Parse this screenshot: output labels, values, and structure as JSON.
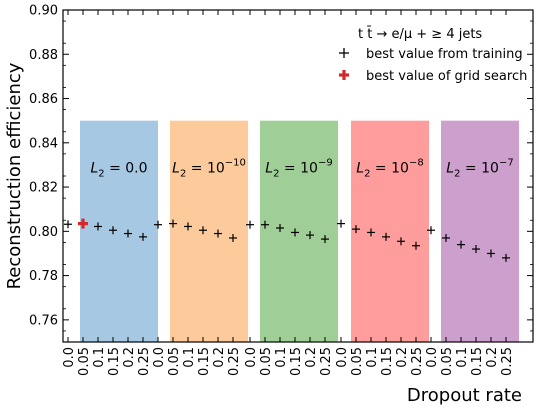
{
  "chart_data": {
    "type": "scatter",
    "title": "",
    "xlabel": "Dropout rate",
    "ylabel": "Reconstruction efficiency",
    "ylim": [
      0.75,
      0.9
    ],
    "yticks": [
      "0.76",
      "0.78",
      "0.80",
      "0.82",
      "0.84",
      "0.86",
      "0.88",
      "0.90"
    ],
    "dropout_ticks": [
      "0.0",
      "0.05",
      "0.1",
      "0.15",
      "0.2",
      "0.25"
    ],
    "annotation_process": "t t̄ → e/μ + ≥ 4 jets",
    "legend": {
      "position": "top-right",
      "entries": [
        {
          "label": "best value from training",
          "marker": "+",
          "color": "#000000"
        },
        {
          "label": "best value of grid search",
          "marker": "plus-thick",
          "color": "#d62728"
        }
      ]
    },
    "groups": [
      {
        "l2_label_prefix": "L",
        "l2_sub": "2",
        "l2_eq": " = ",
        "l2_base": "0.0",
        "l2_exp": "",
        "color": "#a6c8e3",
        "values": [
          0.8032,
          0.8035,
          0.8022,
          0.8005,
          0.799,
          0.7975
        ]
      },
      {
        "l2_label_prefix": "L",
        "l2_sub": "2",
        "l2_eq": " = ",
        "l2_base": "10",
        "l2_exp": "−10",
        "color": "#fdcb9b",
        "values": [
          0.803,
          0.8035,
          0.8022,
          0.8005,
          0.799,
          0.797
        ]
      },
      {
        "l2_label_prefix": "L",
        "l2_sub": "2",
        "l2_eq": " = ",
        "l2_base": "10",
        "l2_exp": "−9",
        "color": "#9fcf97",
        "values": [
          0.803,
          0.803,
          0.8015,
          0.7995,
          0.7983,
          0.7965
        ]
      },
      {
        "l2_label_prefix": "L",
        "l2_sub": "2",
        "l2_eq": " = ",
        "l2_base": "10",
        "l2_exp": "−8",
        "color": "#ff9c9c",
        "values": [
          0.8035,
          0.801,
          0.7995,
          0.7975,
          0.7955,
          0.7935
        ]
      },
      {
        "l2_label_prefix": "L",
        "l2_sub": "2",
        "l2_eq": " = ",
        "l2_base": "10",
        "l2_exp": "−7",
        "color": "#cd9fcd",
        "values": [
          0.8005,
          0.797,
          0.794,
          0.792,
          0.79,
          0.788
        ]
      }
    ],
    "best_grid_search": {
      "group_index": 0,
      "dropout_index": 1,
      "value": 0.8035
    }
  }
}
